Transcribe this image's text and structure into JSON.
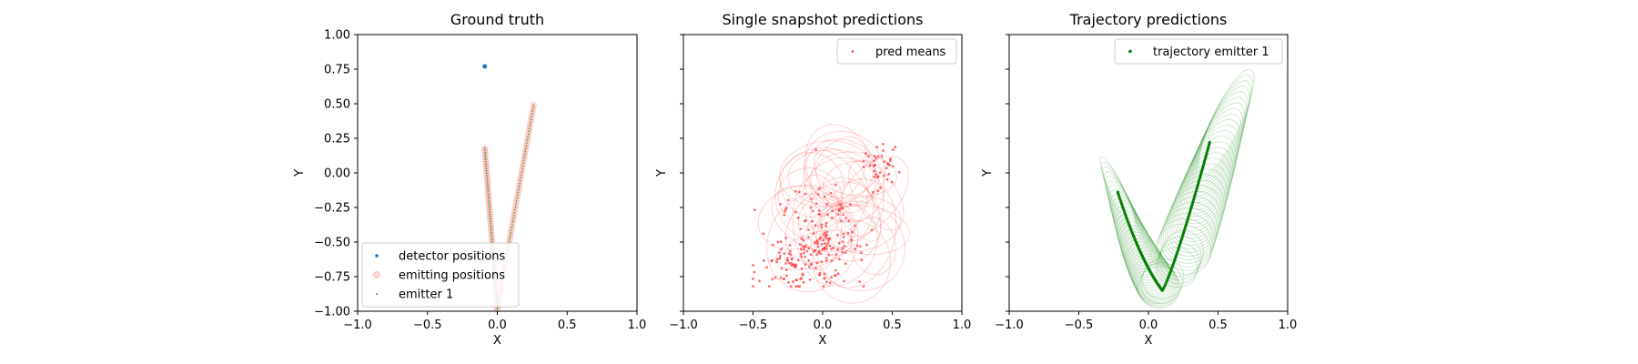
{
  "chart_data": [
    {
      "type": "scatter",
      "title": "Ground truth",
      "xlabel": "X",
      "ylabel": "Y",
      "xlim": [
        -1.0,
        1.0
      ],
      "ylim": [
        -1.0,
        1.0
      ],
      "xticks": [
        "−1.0",
        "−0.5",
        "0.0",
        "0.5",
        "1.0"
      ],
      "yticks": [
        "1.00",
        "0.75",
        "0.50",
        "0.25",
        "0.00",
        "−0.25",
        "−0.50",
        "−0.75",
        "−1.00"
      ],
      "legend_position": "lower-left",
      "series": [
        {
          "name": "detector positions",
          "color": "#1f77b4",
          "points": [
            [
              -0.09,
              0.77
            ]
          ]
        },
        {
          "name": "emitting positions",
          "color": "#ff9e9e",
          "segments": [
            [
              [
                -0.09,
                0.18
              ],
              [
                0.0,
                -0.98
              ]
            ],
            [
              [
                0.0,
                -0.98
              ],
              [
                0.26,
                0.49
              ]
            ]
          ]
        },
        {
          "name": "emitter 1",
          "color": "#2ca02c",
          "segments": [
            [
              [
                -0.09,
                0.18
              ],
              [
                0.0,
                -0.98
              ]
            ],
            [
              [
                0.0,
                -0.98
              ],
              [
                0.26,
                0.49
              ]
            ]
          ]
        }
      ]
    },
    {
      "type": "scatter",
      "title": "Single snapshot predictions",
      "xlabel": "X",
      "ylabel": "Y",
      "xlim": [
        -1.0,
        1.0
      ],
      "ylim": [
        -1.0,
        1.0
      ],
      "xticks": [
        "−1.0",
        "−0.5",
        "0.0",
        "0.5",
        "1.0"
      ],
      "legend_position": "top-right",
      "series": [
        {
          "name": "pred means",
          "color": "#ff3b3b",
          "cluster": {
            "x_range": [
              -0.5,
              0.55
            ],
            "y_range": [
              -0.82,
              0.22
            ]
          }
        }
      ]
    },
    {
      "type": "line",
      "title": "Trajectory predictions",
      "xlabel": "X",
      "ylabel": "Y",
      "xlim": [
        -1.0,
        1.0
      ],
      "ylim": [
        -1.0,
        1.0
      ],
      "xticks": [
        "−1.0",
        "−0.5",
        "0.0",
        "0.5",
        "1.0"
      ],
      "legend_position": "top-right",
      "series": [
        {
          "name": "trajectory emitter 1",
          "color": "#008000",
          "path": [
            [
              -0.22,
              -0.14
            ],
            [
              0.1,
              -0.85
            ],
            [
              0.44,
              0.22
            ]
          ]
        }
      ]
    }
  ],
  "colors": {
    "detector": "#1f77b4",
    "emitting": "#ff9e9e",
    "emitter": "#2ca02c",
    "pred": "#ff3b3b",
    "trajectory": "#008000"
  }
}
